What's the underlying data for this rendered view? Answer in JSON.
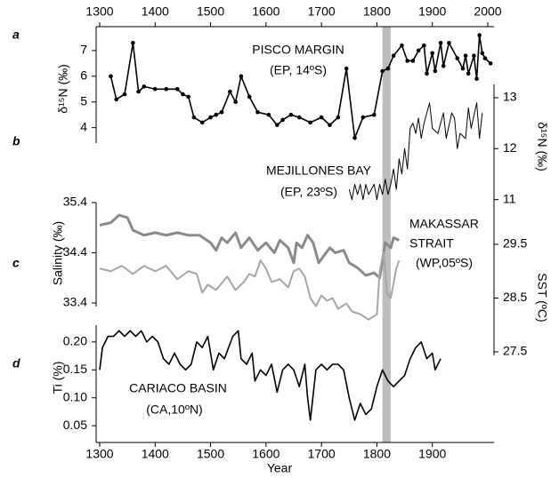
{
  "chart_data": [
    {
      "type": "line",
      "ylabel": "δ¹⁵N (‰)",
      "panel_label": "a",
      "annotations": [
        "PISCO MARGIN",
        "(EP, 14ºS)"
      ],
      "xlim": [
        1300,
        2000
      ],
      "xticks": [
        1300,
        1400,
        1500,
        1600,
        1700,
        1800,
        1900,
        2000
      ],
      "ylim": [
        3.4,
        8.0
      ],
      "yticks": [
        4,
        5,
        6,
        7
      ],
      "shaded_band": [
        1810,
        1825
      ],
      "series": [
        {
          "color": "#000000",
          "line_width": 1.6,
          "markers": true,
          "x": [
            1320,
            1330,
            1345,
            1360,
            1370,
            1380,
            1400,
            1420,
            1440,
            1450,
            1460,
            1470,
            1485,
            1500,
            1510,
            1520,
            1535,
            1545,
            1555,
            1570,
            1585,
            1605,
            1620,
            1630,
            1645,
            1660,
            1680,
            1700,
            1715,
            1730,
            1745,
            1760,
            1775,
            1795,
            1810,
            1820,
            1830,
            1845,
            1855,
            1865,
            1875,
            1885,
            1890,
            1900,
            1905,
            1915,
            1920,
            1930,
            1945,
            1955,
            1960,
            1965,
            1975,
            1980,
            1985,
            1990,
            1995,
            2005
          ],
          "values": [
            6.0,
            5.1,
            5.3,
            7.3,
            5.4,
            5.6,
            5.5,
            5.5,
            5.5,
            5.3,
            5.2,
            4.4,
            4.2,
            4.4,
            4.5,
            4.6,
            5.4,
            5.0,
            6.0,
            5.2,
            4.6,
            4.5,
            4.1,
            4.3,
            4.5,
            4.4,
            4.2,
            4.4,
            4.1,
            4.4,
            6.3,
            3.6,
            4.4,
            4.5,
            6.2,
            6.3,
            6.8,
            7.2,
            6.6,
            6.6,
            7.0,
            7.2,
            6.1,
            6.9,
            6.2,
            7.3,
            6.4,
            7.3,
            6.7,
            6.3,
            6.8,
            6.1,
            6.8,
            5.9,
            7.6,
            6.9,
            6.7,
            6.5
          ]
        }
      ]
    },
    {
      "type": "line",
      "y2label": "δ¹⁵N (‰)",
      "panel_label": "b",
      "annotations": [
        "MEJILLONES BAY",
        "(EP, 23ºS)"
      ],
      "xlim": [
        1300,
        2000
      ],
      "y2lim": [
        10.75,
        13.25
      ],
      "y2ticks": [
        11,
        12,
        13
      ],
      "series": [
        {
          "color": "#000000",
          "line_width": 1,
          "axis": "y2",
          "x": [
            1750,
            1755,
            1760,
            1765,
            1770,
            1775,
            1780,
            1785,
            1795,
            1800,
            1805,
            1810,
            1815,
            1820,
            1825,
            1830,
            1835,
            1840,
            1845,
            1850,
            1855,
            1860,
            1865,
            1870,
            1875,
            1880,
            1885,
            1895,
            1900,
            1910,
            1915,
            1920,
            1925,
            1935,
            1940,
            1945,
            1950,
            1960,
            1965,
            1970,
            1980,
            1985,
            1990
          ],
          "values": [
            11.2,
            11.0,
            11.3,
            11.1,
            11.3,
            11.0,
            11.3,
            11.1,
            11.3,
            11.0,
            11.3,
            11.1,
            11.4,
            11.1,
            11.3,
            11.6,
            11.2,
            11.8,
            11.5,
            12.0,
            11.6,
            12.4,
            12.5,
            12.3,
            12.6,
            12.2,
            12.5,
            12.9,
            12.4,
            12.3,
            12.5,
            12.7,
            12.2,
            12.7,
            12.6,
            12.0,
            12.3,
            12.2,
            12.8,
            12.4,
            12.9,
            12.2,
            12.7
          ]
        }
      ]
    },
    {
      "type": "line",
      "ylabel": "Salinity (‰)",
      "y2label": "SST (ºC)",
      "panel_label": "c",
      "annotations": [
        "MAKASSAR",
        "STRAIT",
        "(WP,05ºS)"
      ],
      "xlim": [
        1300,
        2000
      ],
      "ylim": [
        33.4,
        35.4
      ],
      "yticks": [
        33.4,
        34.4,
        35.4
      ],
      "y2lim": [
        27.5,
        29.5
      ],
      "y2ticks": [
        27.5,
        28.5,
        29.5
      ],
      "series": [
        {
          "color": "#8a8a8a",
          "line_width": 3,
          "x": [
            1300,
            1320,
            1335,
            1350,
            1360,
            1380,
            1400,
            1420,
            1440,
            1460,
            1480,
            1500,
            1510,
            1520,
            1530,
            1545,
            1555,
            1570,
            1585,
            1600,
            1615,
            1625,
            1640,
            1650,
            1655,
            1665,
            1675,
            1685,
            1695,
            1705,
            1715,
            1725,
            1740,
            1750,
            1765,
            1780,
            1795,
            1805,
            1815,
            1825,
            1830,
            1840
          ],
          "values": [
            34.95,
            35.0,
            35.15,
            35.1,
            34.85,
            34.75,
            34.8,
            34.75,
            34.8,
            34.75,
            34.75,
            34.6,
            34.45,
            34.7,
            34.6,
            34.8,
            34.5,
            34.7,
            34.45,
            34.6,
            34.4,
            34.65,
            34.5,
            34.2,
            34.6,
            34.5,
            34.75,
            34.6,
            34.2,
            34.35,
            34.5,
            34.4,
            34.45,
            34.2,
            34.1,
            33.95,
            34.0,
            33.9,
            34.6,
            34.5,
            34.7,
            34.65
          ]
        },
        {
          "color": "#a6a6a6",
          "line_width": 2,
          "axis": "y2",
          "x": [
            1300,
            1320,
            1340,
            1360,
            1380,
            1400,
            1420,
            1440,
            1460,
            1475,
            1485,
            1495,
            1510,
            1530,
            1545,
            1560,
            1570,
            1580,
            1590,
            1600,
            1610,
            1625,
            1640,
            1650,
            1660,
            1670,
            1680,
            1690,
            1700,
            1710,
            1720,
            1730,
            1745,
            1755,
            1770,
            1785,
            1800,
            1805,
            1812,
            1818,
            1825,
            1835,
            1840
          ],
          "values": [
            29.05,
            29.0,
            29.1,
            28.95,
            29.1,
            29.0,
            29.1,
            28.85,
            29.0,
            28.95,
            28.6,
            28.75,
            28.65,
            28.9,
            28.65,
            28.8,
            28.95,
            28.9,
            29.2,
            29.05,
            28.8,
            28.85,
            28.7,
            29.0,
            29.05,
            28.9,
            28.5,
            28.35,
            28.55,
            28.45,
            28.5,
            28.3,
            28.4,
            28.25,
            28.2,
            28.1,
            28.2,
            29.0,
            29.35,
            28.6,
            28.5,
            29.05,
            29.2
          ]
        }
      ]
    },
    {
      "type": "line",
      "ylabel": "Ti (%)",
      "xlabel": "Year",
      "panel_label": "d",
      "annotations": [
        "CARIACO BASIN",
        "(CA,10ºN)"
      ],
      "xlim": [
        1300,
        2000
      ],
      "xticks": [
        1300,
        1400,
        1500,
        1600,
        1700,
        1800,
        1900
      ],
      "ylim": [
        0.02,
        0.23
      ],
      "yticks": [
        {
          "value": 0.05,
          "label": "0.05"
        },
        {
          "value": 0.1,
          "label": "0.10"
        },
        0.15,
        {
          "value": 0.2,
          "label": "0.20"
        }
      ],
      "series": [
        {
          "color": "#000000",
          "line_width": 1.6,
          "x": [
            1300,
            1305,
            1315,
            1325,
            1335,
            1345,
            1355,
            1365,
            1375,
            1385,
            1395,
            1405,
            1415,
            1425,
            1435,
            1445,
            1455,
            1465,
            1475,
            1485,
            1495,
            1505,
            1515,
            1525,
            1540,
            1550,
            1555,
            1565,
            1575,
            1580,
            1590,
            1600,
            1610,
            1620,
            1630,
            1640,
            1650,
            1660,
            1670,
            1675,
            1680,
            1690,
            1700,
            1710,
            1720,
            1730,
            1740,
            1750,
            1760,
            1770,
            1780,
            1790,
            1800,
            1810,
            1820,
            1830,
            1840,
            1850,
            1860,
            1870,
            1880,
            1890,
            1900,
            1905,
            1915
          ],
          "values": [
            0.15,
            0.19,
            0.21,
            0.21,
            0.22,
            0.21,
            0.22,
            0.21,
            0.22,
            0.2,
            0.21,
            0.2,
            0.17,
            0.16,
            0.18,
            0.16,
            0.15,
            0.16,
            0.2,
            0.19,
            0.21,
            0.15,
            0.18,
            0.17,
            0.21,
            0.22,
            0.17,
            0.16,
            0.18,
            0.13,
            0.15,
            0.14,
            0.16,
            0.11,
            0.15,
            0.16,
            0.15,
            0.12,
            0.16,
            0.1,
            0.06,
            0.15,
            0.16,
            0.15,
            0.16,
            0.16,
            0.15,
            0.1,
            0.06,
            0.09,
            0.07,
            0.08,
            0.12,
            0.15,
            0.13,
            0.12,
            0.13,
            0.14,
            0.17,
            0.19,
            0.2,
            0.17,
            0.18,
            0.15,
            0.17
          ]
        }
      ]
    }
  ]
}
